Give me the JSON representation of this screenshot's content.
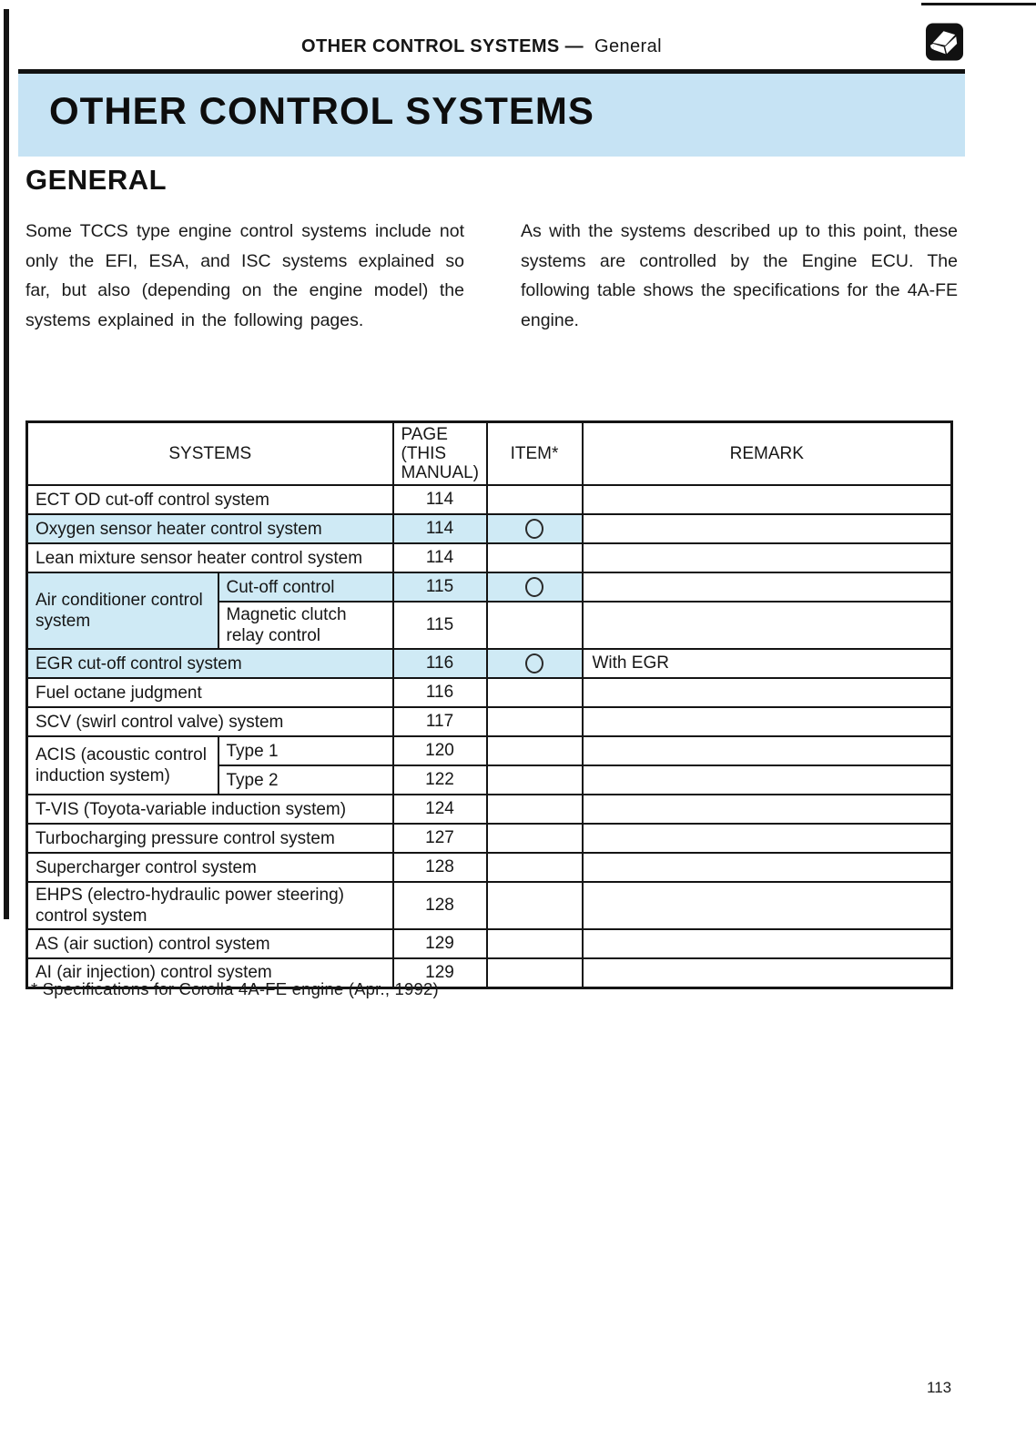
{
  "header": {
    "title_bold": "OTHER CONTROL SYSTEMS —",
    "title_regular": "General"
  },
  "icons": {
    "corner": "open-book-icon",
    "item_mark": "circle-mark-icon"
  },
  "banner": {
    "title": "OTHER CONTROL SYSTEMS",
    "bg_color": "#c6e3f4"
  },
  "general": {
    "heading": "GENERAL",
    "left_paragraph": "Some TCCS type engine control systems include not only the EFI, ESA, and ISC systems explained so far, but also (depending on the engine model) the systems explained in the following pages.",
    "right_paragraph": "As with the systems described up to this point, these systems are controlled by the Engine ECU. The following table shows the specifications for the 4A-FE engine."
  },
  "table": {
    "highlight_color": "#cfeaf5",
    "headers": {
      "systems": "SYSTEMS",
      "page": "PAGE\n(THIS\nMANUAL)",
      "item": "ITEM*",
      "remark": "REMARK"
    },
    "rows": [
      {
        "label": "ECT OD cut-off control system",
        "page": "114",
        "item": false,
        "remark": "",
        "highlight": false
      },
      {
        "label": "Oxygen sensor heater control system",
        "page": "114",
        "item": true,
        "remark": "",
        "highlight": true
      },
      {
        "label": "Lean mixture sensor heater control system",
        "page": "114",
        "item": false,
        "remark": "",
        "highlight": false
      },
      {
        "group": "Air conditioner control system",
        "group_highlight": true,
        "subrows": [
          {
            "label": "Cut-off control",
            "page": "115",
            "item": true,
            "remark": "",
            "highlight": true
          },
          {
            "label": "Magnetic clutch relay control",
            "page": "115",
            "item": false,
            "remark": "",
            "highlight": false
          }
        ]
      },
      {
        "label": "EGR cut-off control system",
        "page": "116",
        "item": true,
        "remark": "With EGR",
        "highlight": true
      },
      {
        "label": "Fuel octane judgment",
        "page": "116",
        "item": false,
        "remark": "",
        "highlight": false
      },
      {
        "label": "SCV (swirl control valve) system",
        "page": "117",
        "item": false,
        "remark": "",
        "highlight": false
      },
      {
        "group": "ACIS (acoustic control induction system)",
        "group_highlight": false,
        "subrows": [
          {
            "label": "Type 1",
            "page": "120",
            "item": false,
            "remark": "",
            "highlight": false
          },
          {
            "label": "Type 2",
            "page": "122",
            "item": false,
            "remark": "",
            "highlight": false
          }
        ]
      },
      {
        "label": "T-VIS (Toyota-variable induction system)",
        "page": "124",
        "item": false,
        "remark": "",
        "highlight": false
      },
      {
        "label": "Turbocharging pressure control system",
        "page": "127",
        "item": false,
        "remark": "",
        "highlight": false
      },
      {
        "label": "Supercharger control system",
        "page": "128",
        "item": false,
        "remark": "",
        "highlight": false
      },
      {
        "label": "EHPS (electro-hydraulic power steering) control system",
        "page": "128",
        "item": false,
        "remark": "",
        "highlight": false
      },
      {
        "label": "AS (air suction) control system",
        "page": "129",
        "item": false,
        "remark": "",
        "highlight": false
      },
      {
        "label": "AI (air injection) control system",
        "page": "129",
        "item": false,
        "remark": "",
        "highlight": false
      }
    ]
  },
  "footnote": "* Specifications for Corolla 4A-FE engine (Apr., 1992)",
  "page_number": "113"
}
